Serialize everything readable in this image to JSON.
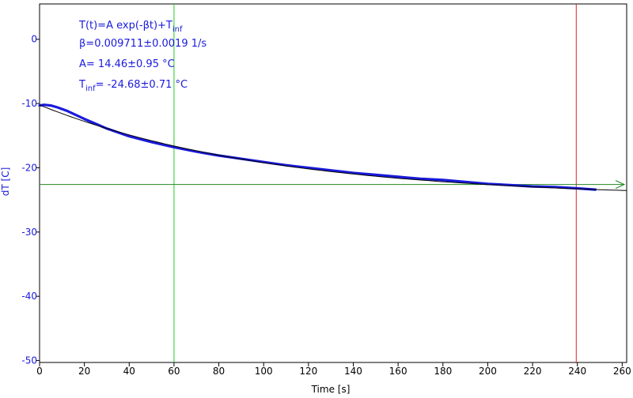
{
  "chart_data": {
    "type": "line",
    "xlabel": "Time [s]",
    "ylabel": "dT [C]",
    "xlim": [
      0,
      262
    ],
    "ylim": [
      -50.3,
      5.5
    ],
    "x_ticks": [
      0,
      20,
      40,
      60,
      80,
      100,
      120,
      140,
      160,
      180,
      200,
      220,
      240,
      260
    ],
    "y_ticks": [
      0,
      -10,
      -20,
      -30,
      -40,
      -50
    ],
    "grid": false,
    "series": [
      {
        "kind": "measured",
        "color": "#1a1adc",
        "x": [
          0,
          2,
          5,
          8,
          12,
          20,
          30,
          40,
          50,
          60,
          70,
          80,
          90,
          100,
          110,
          120,
          130,
          140,
          150,
          160,
          170,
          180,
          190,
          200,
          210,
          220,
          230,
          240,
          248
        ],
        "y": [
          -10.3,
          -10.2,
          -10.3,
          -10.6,
          -11.1,
          -12.4,
          -13.9,
          -15.1,
          -16.0,
          -16.8,
          -17.5,
          -18.1,
          -18.6,
          -19.1,
          -19.6,
          -20.0,
          -20.4,
          -20.8,
          -21.1,
          -21.4,
          -21.7,
          -21.9,
          -22.2,
          -22.5,
          -22.7,
          -22.9,
          -23.0,
          -23.2,
          -23.4
        ]
      },
      {
        "kind": "fit",
        "color": "#000000",
        "model": "T(t)=A exp(-βt)+Tinf",
        "beta": 0.009711,
        "A": 14.46,
        "Tinf": -24.68,
        "x_range": [
          0,
          262
        ]
      }
    ],
    "markers": {
      "vertical_lines": [
        {
          "x": 60,
          "color": "#22cc22"
        },
        {
          "x": 239.5,
          "color": "#dd2222"
        }
      ],
      "horizontal_line": {
        "y": -22.6,
        "color": "#228822",
        "arrow": "right"
      }
    },
    "annotations": {
      "color": "#1a1adc",
      "model_main": "T(t)=A exp(-βt)+T",
      "model_sub": "inf",
      "beta_line": "β=0.009711±0.0019 1/s",
      "a_line": "A= 14.46±0.95 °C",
      "tinf_main": "T",
      "tinf_sub": "inf",
      "tinf_rest": "= -24.68±0.71 °C"
    }
  }
}
